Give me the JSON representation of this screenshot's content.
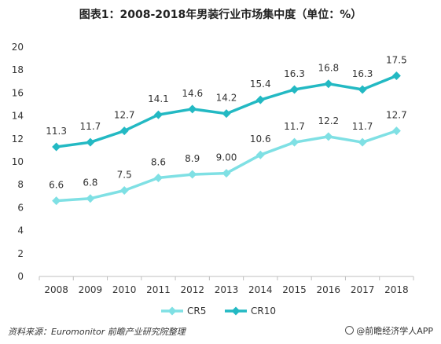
{
  "chart_data": {
    "type": "line",
    "title": "图表1：2008-2018年男装行业市场集中度（单位：%）",
    "categories": [
      "2008",
      "2009",
      "2010",
      "2011",
      "2012",
      "2013",
      "2014",
      "2015",
      "2016",
      "2017",
      "2018"
    ],
    "series": [
      {
        "name": "CR5",
        "color": "#7fe0e4",
        "values": [
          6.6,
          6.8,
          7.5,
          8.6,
          8.9,
          9.0,
          10.6,
          11.7,
          12.2,
          11.7,
          12.7
        ],
        "labels": [
          "6.6",
          "6.8",
          "7.5",
          "8.6",
          "8.9",
          "9.00",
          "10.6",
          "11.7",
          "12.2",
          "11.7",
          "12.7"
        ]
      },
      {
        "name": "CR10",
        "color": "#23b9c3",
        "values": [
          11.3,
          11.7,
          12.7,
          14.1,
          14.6,
          14.2,
          15.4,
          16.3,
          16.8,
          16.3,
          17.5
        ],
        "labels": [
          "11.3",
          "11.7",
          "12.7",
          "14.1",
          "14.6",
          "14.2",
          "15.4",
          "16.3",
          "16.8",
          "16.3",
          "17.5"
        ]
      }
    ],
    "ylim": [
      0,
      20
    ],
    "yticks": [
      0,
      2,
      4,
      6,
      8,
      10,
      12,
      14,
      16,
      18,
      20
    ],
    "xlabel": "",
    "ylabel": "",
    "grid": false,
    "legend": "bottom-center"
  },
  "footer": {
    "source": "资料来源：Euromonitor  前瞻产业研究院整理",
    "brand": "@前瞻经济学人APP"
  }
}
